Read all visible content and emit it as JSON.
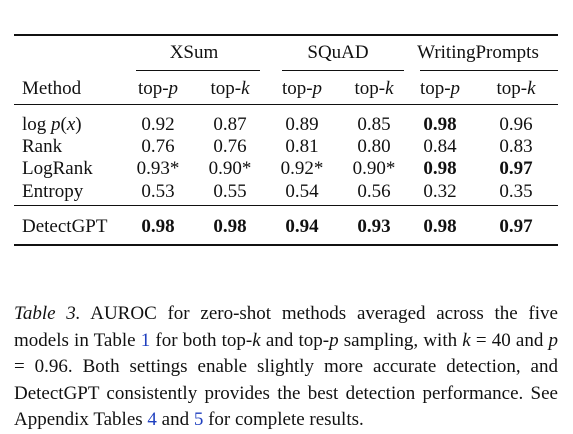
{
  "table": {
    "groups": [
      "XSum",
      "SQuAD",
      "WritingPrompts"
    ],
    "subheaders": [
      {
        "name": "top-",
        "var": "p"
      },
      {
        "name": "top-",
        "var": "k"
      },
      {
        "name": "top-",
        "var": "p"
      },
      {
        "name": "top-",
        "var": "k"
      },
      {
        "name": "top-",
        "var": "p"
      },
      {
        "name": "top-",
        "var": "k"
      }
    ],
    "method_header": "Method",
    "rows": [
      {
        "method": "log p(x)",
        "cells": [
          {
            "v": "0.92"
          },
          {
            "v": "0.87"
          },
          {
            "v": "0.89"
          },
          {
            "v": "0.85"
          },
          {
            "v": "0.98",
            "bold": true
          },
          {
            "v": "0.96"
          }
        ]
      },
      {
        "method": "Rank",
        "cells": [
          {
            "v": "0.76"
          },
          {
            "v": "0.76"
          },
          {
            "v": "0.81"
          },
          {
            "v": "0.80"
          },
          {
            "v": "0.84"
          },
          {
            "v": "0.83"
          }
        ]
      },
      {
        "method": "LogRank",
        "cells": [
          {
            "v": "0.93*"
          },
          {
            "v": "0.90*"
          },
          {
            "v": "0.92*"
          },
          {
            "v": "0.90*"
          },
          {
            "v": "0.98",
            "bold": true
          },
          {
            "v": "0.97",
            "bold": true
          }
        ]
      },
      {
        "method": "Entropy",
        "cells": [
          {
            "v": "0.53"
          },
          {
            "v": "0.55"
          },
          {
            "v": "0.54"
          },
          {
            "v": "0.56"
          },
          {
            "v": "0.32"
          },
          {
            "v": "0.35"
          }
        ]
      }
    ],
    "final_row": {
      "method": "DetectGPT",
      "cells": [
        {
          "v": "0.98",
          "bold": true
        },
        {
          "v": "0.98",
          "bold": true
        },
        {
          "v": "0.94",
          "bold": true
        },
        {
          "v": "0.93",
          "bold": true
        },
        {
          "v": "0.98",
          "bold": true
        },
        {
          "v": "0.97",
          "bold": true
        }
      ]
    }
  },
  "caption": {
    "label": "Table 3.",
    "t1": " AUROC for zero-shot methods averaged across the five models in Table ",
    "ref1": "1",
    "t2": " for both top-",
    "k": "k",
    "t3": " and top-",
    "p": "p",
    "t4": " sampling, with ",
    "k_eq": "k",
    "t5": " = 40 and ",
    "p_eq": "p",
    "t6": " = 0.96. Both settings enable slightly more accurate detection, and DetectGPT consistently provides the best detection performance. See Appendix Tables ",
    "ref2": "4",
    "t7": " and ",
    "ref3": "5",
    "t8": " for complete results."
  }
}
